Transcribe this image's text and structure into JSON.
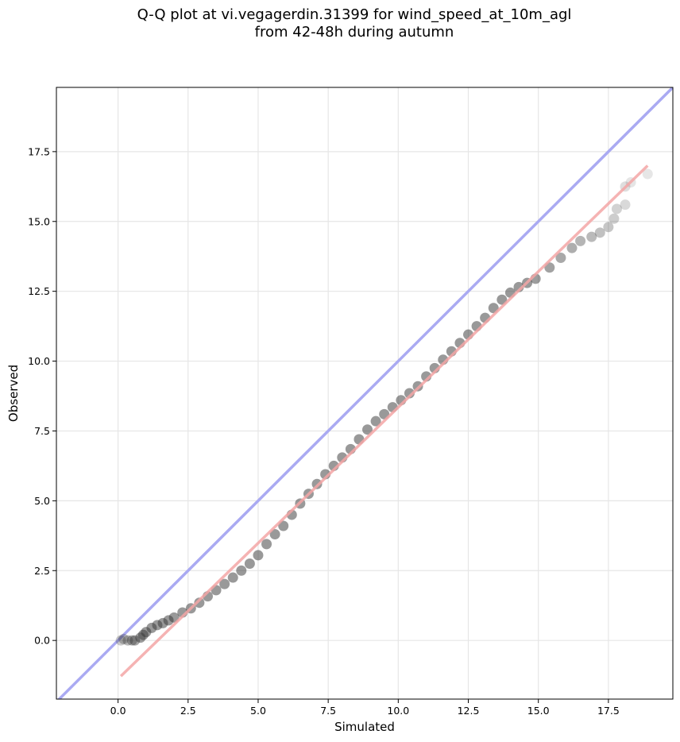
{
  "chart_data": {
    "type": "scatter",
    "title_line1": "Q-Q plot at vi.vegagerdin.31399 for wind_speed_at_10m_agl",
    "title_line2": "from 42-48h during autumn",
    "xlabel": "Simulated",
    "ylabel": "Observed",
    "xlim": [
      -2.2,
      19.8
    ],
    "ylim": [
      -2.1,
      19.8
    ],
    "x_ticks": [
      0.0,
      2.5,
      5.0,
      7.5,
      10.0,
      12.5,
      15.0,
      17.5
    ],
    "x_tick_labels": [
      "0.0",
      "2.5",
      "5.0",
      "7.5",
      "10.0",
      "12.5",
      "15.0",
      "17.5"
    ],
    "y_ticks": [
      0.0,
      2.5,
      5.0,
      7.5,
      10.0,
      12.5,
      15.0,
      17.5
    ],
    "y_tick_labels": [
      "0.0",
      "2.5",
      "5.0",
      "7.5",
      "10.0",
      "12.5",
      "15.0",
      "17.5"
    ],
    "grid": true,
    "identity_line": {
      "color": "#aaaaf2",
      "from": [
        -2.2,
        -2.2
      ],
      "to": [
        19.8,
        19.8
      ]
    },
    "fit_line": {
      "color": "#f4a6a6",
      "from": [
        0.1,
        -1.28
      ],
      "to": [
        18.9,
        17.0
      ]
    },
    "quantile_points_color": "#333333",
    "quantile_points": [
      [
        0.1,
        0.0
      ],
      [
        0.2,
        0.05
      ],
      [
        0.35,
        0.0
      ],
      [
        0.5,
        0.0
      ],
      [
        0.6,
        0.0
      ],
      [
        0.8,
        0.1
      ],
      [
        0.9,
        0.2
      ],
      [
        1.0,
        0.3
      ],
      [
        1.2,
        0.45
      ],
      [
        1.4,
        0.55
      ],
      [
        1.6,
        0.62
      ],
      [
        1.8,
        0.72
      ],
      [
        2.0,
        0.82
      ],
      [
        2.3,
        1.0
      ],
      [
        2.6,
        1.15
      ],
      [
        2.9,
        1.35
      ],
      [
        3.2,
        1.58
      ],
      [
        3.5,
        1.8
      ],
      [
        3.8,
        2.02
      ],
      [
        4.1,
        2.25
      ],
      [
        4.4,
        2.5
      ],
      [
        4.7,
        2.75
      ],
      [
        5.0,
        3.05
      ],
      [
        5.3,
        3.45
      ],
      [
        5.6,
        3.8
      ],
      [
        5.9,
        4.1
      ],
      [
        6.2,
        4.5
      ],
      [
        6.5,
        4.9
      ],
      [
        6.8,
        5.25
      ],
      [
        7.1,
        5.6
      ],
      [
        7.4,
        5.95
      ],
      [
        7.7,
        6.25
      ],
      [
        8.0,
        6.55
      ],
      [
        8.3,
        6.85
      ],
      [
        8.6,
        7.2
      ],
      [
        8.9,
        7.55
      ],
      [
        9.2,
        7.85
      ],
      [
        9.5,
        8.1
      ],
      [
        9.8,
        8.35
      ],
      [
        10.1,
        8.6
      ],
      [
        10.4,
        8.85
      ],
      [
        10.7,
        9.1
      ],
      [
        11.0,
        9.45
      ],
      [
        11.3,
        9.75
      ],
      [
        11.6,
        10.05
      ],
      [
        11.9,
        10.35
      ],
      [
        12.2,
        10.65
      ],
      [
        12.5,
        10.95
      ],
      [
        12.8,
        11.25
      ],
      [
        13.1,
        11.55
      ],
      [
        13.4,
        11.9
      ],
      [
        13.7,
        12.2
      ],
      [
        14.0,
        12.45
      ],
      [
        14.3,
        12.65
      ],
      [
        14.6,
        12.8
      ],
      [
        14.9,
        12.95
      ],
      [
        15.4,
        13.35
      ],
      [
        15.8,
        13.7
      ],
      [
        16.2,
        14.05
      ],
      [
        16.5,
        14.3
      ],
      [
        16.9,
        14.45
      ],
      [
        17.2,
        14.6
      ],
      [
        17.5,
        14.8
      ],
      [
        17.7,
        15.1
      ],
      [
        17.8,
        15.45
      ],
      [
        18.1,
        15.6
      ],
      [
        18.1,
        16.25
      ],
      [
        18.3,
        16.4
      ],
      [
        18.9,
        16.7
      ]
    ]
  }
}
